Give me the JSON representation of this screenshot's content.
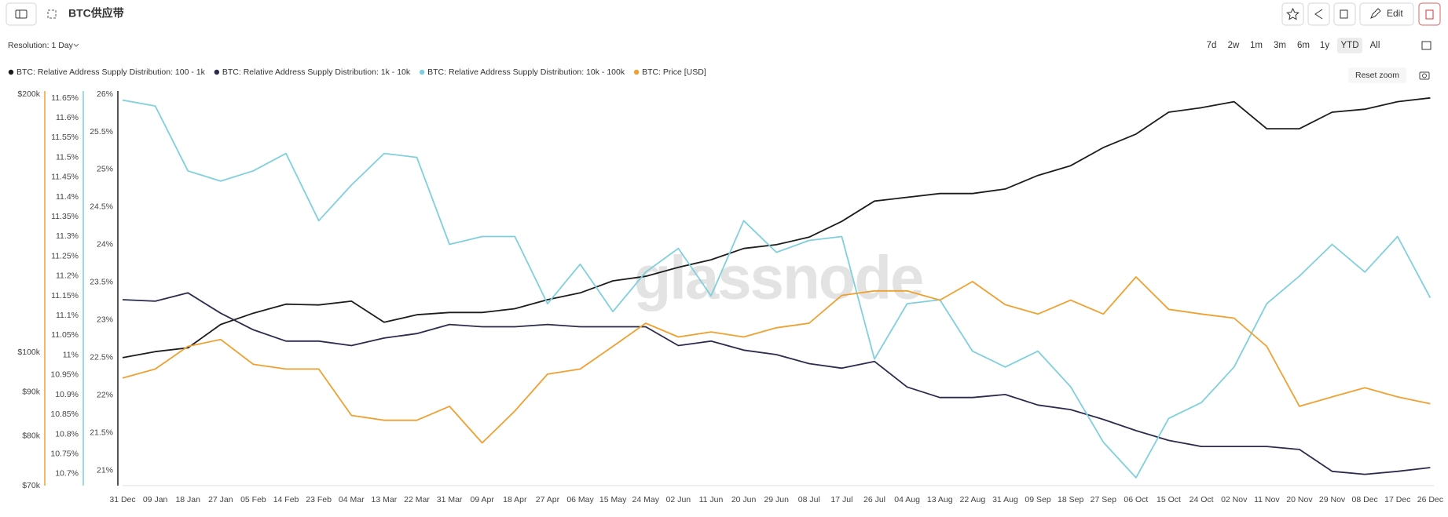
{
  "header": {
    "title": "BTC供应带",
    "edit": "Edit",
    "resolution": "Resolution: 1 Day",
    "ranges": [
      "7d",
      "2w",
      "1m",
      "3m",
      "6m",
      "1y",
      "YTD",
      "All"
    ],
    "active_range": "YTD",
    "reset_zoom": "Reset zoom"
  },
  "chart_data": {
    "type": "line",
    "watermark": "glassnode",
    "yscale": "log",
    "x": [
      0,
      9,
      18,
      27,
      36,
      45,
      54,
      63,
      72,
      81,
      90,
      99,
      108,
      117,
      126,
      135,
      144,
      153,
      162,
      171,
      180,
      189,
      198,
      207,
      216,
      225,
      234,
      243,
      252,
      261,
      270,
      279,
      288,
      297,
      306,
      315,
      324,
      333,
      342,
      351,
      360
    ],
    "xlim": [
      0,
      361
    ],
    "xticks": [
      {
        "value": 0,
        "label": "31 Dec"
      },
      {
        "value": 9,
        "label": "09 Jan"
      },
      {
        "value": 18,
        "label": "18 Jan"
      },
      {
        "value": 27,
        "label": "27 Jan"
      },
      {
        "value": 36,
        "label": "05 Feb"
      },
      {
        "value": 45,
        "label": "14 Feb"
      },
      {
        "value": 54,
        "label": "23 Feb"
      },
      {
        "value": 63,
        "label": "04 Mar"
      },
      {
        "value": 72,
        "label": "13 Mar"
      },
      {
        "value": 81,
        "label": "22 Mar"
      },
      {
        "value": 90,
        "label": "31 Mar"
      },
      {
        "value": 99,
        "label": "09 Apr"
      },
      {
        "value": 108,
        "label": "18 Apr"
      },
      {
        "value": 117,
        "label": "27 Apr"
      },
      {
        "value": 126,
        "label": "06 May"
      },
      {
        "value": 135,
        "label": "15 May"
      },
      {
        "value": 144,
        "label": "24 May"
      },
      {
        "value": 153,
        "label": "02 Jun"
      },
      {
        "value": 162,
        "label": "11 Jun"
      },
      {
        "value": 171,
        "label": "20 Jun"
      },
      {
        "value": 180,
        "label": "29 Jun"
      },
      {
        "value": 189,
        "label": "08 Jul"
      },
      {
        "value": 198,
        "label": "17 Jul"
      },
      {
        "value": 207,
        "label": "26 Jul"
      },
      {
        "value": 216,
        "label": "04 Aug"
      },
      {
        "value": 225,
        "label": "13 Aug"
      },
      {
        "value": 234,
        "label": "22 Aug"
      },
      {
        "value": 243,
        "label": "31 Aug"
      },
      {
        "value": 252,
        "label": "09 Sep"
      },
      {
        "value": 261,
        "label": "18 Sep"
      },
      {
        "value": 270,
        "label": "27 Sep"
      },
      {
        "value": 279,
        "label": "06 Oct"
      },
      {
        "value": 288,
        "label": "15 Oct"
      },
      {
        "value": 297,
        "label": "24 Oct"
      },
      {
        "value": 306,
        "label": "02 Nov"
      },
      {
        "value": 315,
        "label": "11 Nov"
      },
      {
        "value": 324,
        "label": "20 Nov"
      },
      {
        "value": 333,
        "label": "29 Nov"
      },
      {
        "value": 342,
        "label": "08 Dec"
      },
      {
        "value": 351,
        "label": "17 Dec"
      },
      {
        "value": 360,
        "label": "26 Dec"
      }
    ],
    "ylim": [
      70000,
      200000
    ],
    "yticks": [
      {
        "value": 200000,
        "label": "$200k"
      },
      {
        "value": 100000,
        "label": "$100k"
      },
      {
        "value": 90000,
        "label": "$90k"
      },
      {
        "value": 80000,
        "label": "$80k"
      },
      {
        "value": 70000,
        "label": "$70k"
      }
    ],
    "y2lim": [
      10.67,
      11.66
    ],
    "y2ticks": [
      {
        "value": 11.65,
        "label": "11.65%"
      },
      {
        "value": 11.6,
        "label": "11.6%"
      },
      {
        "value": 11.55,
        "label": "11.55%"
      },
      {
        "value": 11.5,
        "label": "11.5%"
      },
      {
        "value": 11.45,
        "label": "11.45%"
      },
      {
        "value": 11.4,
        "label": "11.4%"
      },
      {
        "value": 11.35,
        "label": "11.35%"
      },
      {
        "value": 11.3,
        "label": "11.3%"
      },
      {
        "value": 11.25,
        "label": "11.25%"
      },
      {
        "value": 11.2,
        "label": "11.2%"
      },
      {
        "value": 11.15,
        "label": "11.15%"
      },
      {
        "value": 11.1,
        "label": "11.1%"
      },
      {
        "value": 11.05,
        "label": "11.05%"
      },
      {
        "value": 11,
        "label": "11%"
      },
      {
        "value": 10.95,
        "label": "10.95%"
      },
      {
        "value": 10.9,
        "label": "10.9%"
      },
      {
        "value": 10.85,
        "label": "10.85%"
      },
      {
        "value": 10.8,
        "label": "10.8%"
      },
      {
        "value": 10.75,
        "label": "10.75%"
      },
      {
        "value": 10.7,
        "label": "10.7%"
      }
    ],
    "y3lim": [
      20.8,
      26
    ],
    "y3ticks": [
      {
        "value": 26,
        "label": "26%"
      },
      {
        "value": 25.5,
        "label": "25.5%"
      },
      {
        "value": 25,
        "label": "25%"
      },
      {
        "value": 24.5,
        "label": "24.5%"
      },
      {
        "value": 24,
        "label": "24%"
      },
      {
        "value": 23.5,
        "label": "23.5%"
      },
      {
        "value": 23,
        "label": "23%"
      },
      {
        "value": 22.5,
        "label": "22.5%"
      },
      {
        "value": 22,
        "label": "22%"
      },
      {
        "value": 21.5,
        "label": "21.5%"
      },
      {
        "value": 21,
        "label": "21%"
      }
    ],
    "series": [
      {
        "name": "BTC: Relative Address Supply Distribution: 100 - 1k",
        "color": "#1c1c1c",
        "axis": "y3",
        "values": [
          22.5,
          22.58,
          22.63,
          22.94,
          23.09,
          23.21,
          23.2,
          23.25,
          22.97,
          23.07,
          23.1,
          23.1,
          23.15,
          23.27,
          23.36,
          23.52,
          23.58,
          23.7,
          23.8,
          23.95,
          24.0,
          24.1,
          24.31,
          24.58,
          24.63,
          24.68,
          24.68,
          24.74,
          24.92,
          25.05,
          25.29,
          25.47,
          25.76,
          25.82,
          25.9,
          25.54,
          25.54,
          25.76,
          25.8,
          25.9,
          25.95
        ]
      },
      {
        "name": "BTC: Relative Address Supply Distribution: 1k - 10k",
        "color": "#2b2b4e",
        "axis": "y3",
        "values": [
          23.27,
          23.25,
          23.36,
          23.09,
          22.87,
          22.72,
          22.72,
          22.66,
          22.76,
          22.82,
          22.94,
          22.91,
          22.91,
          22.94,
          22.91,
          22.91,
          22.91,
          22.66,
          22.72,
          22.6,
          22.54,
          22.42,
          22.36,
          22.45,
          22.11,
          21.97,
          21.97,
          22.01,
          21.87,
          21.81,
          21.68,
          21.53,
          21.4,
          21.32,
          21.32,
          21.32,
          21.28,
          20.99,
          20.95,
          20.99,
          21.04
        ]
      },
      {
        "name": "BTC: Relative Address Supply Distribution: 10k - 100k",
        "color": "#7fd0dc",
        "axis": "y2",
        "values": [
          11.645,
          11.63,
          11.466,
          11.44,
          11.466,
          11.51,
          11.34,
          11.43,
          11.51,
          11.5,
          11.28,
          11.3,
          11.3,
          11.13,
          11.23,
          11.11,
          11.21,
          11.27,
          11.15,
          11.34,
          11.26,
          11.29,
          11.3,
          10.99,
          11.13,
          11.14,
          11.01,
          10.97,
          11.01,
          10.92,
          10.78,
          10.69,
          10.84,
          10.88,
          10.97,
          11.13,
          11.2,
          11.28,
          11.21,
          11.3,
          11.145
        ]
      },
      {
        "name": "BTC: Price [USD]",
        "color": "#f0a030",
        "axis": "y",
        "values": [
          93400,
          95700,
          101700,
          103600,
          96900,
          95700,
          95700,
          84500,
          83400,
          83400,
          86600,
          78500,
          85500,
          94400,
          95700,
          101700,
          108200,
          104300,
          105700,
          104300,
          106900,
          108200,
          116600,
          118000,
          118000,
          115100,
          121000,
          113700,
          110900,
          115100,
          110900,
          122500,
          112300,
          110900,
          109700,
          101700,
          86600,
          88800,
          91000,
          88800,
          87200
        ]
      }
    ]
  }
}
